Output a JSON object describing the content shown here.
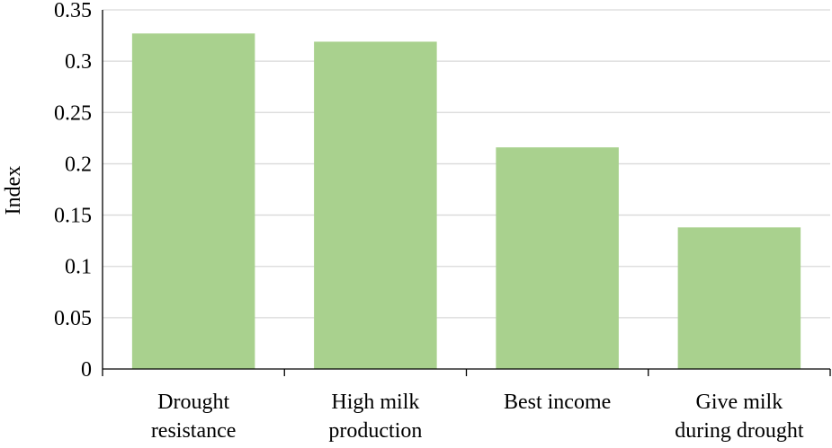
{
  "chart_data": {
    "type": "bar",
    "categories": [
      [
        "Drought",
        "resistance"
      ],
      [
        "High milk",
        "production"
      ],
      [
        "Best income"
      ],
      [
        "Give milk",
        "during drought"
      ]
    ],
    "values": [
      0.327,
      0.319,
      0.216,
      0.138
    ],
    "title": "",
    "xlabel": "",
    "ylabel": "Index",
    "ylim": [
      0,
      0.35
    ],
    "yticks": [
      "0",
      "0.05",
      "0.1",
      "0.15",
      "0.2",
      "0.25",
      "0.3",
      "0.35"
    ],
    "grid": true,
    "legend": "none",
    "colors": {
      "bar": "#a9d18e",
      "grid": "#d9d9d9",
      "axis": "#000000"
    }
  }
}
